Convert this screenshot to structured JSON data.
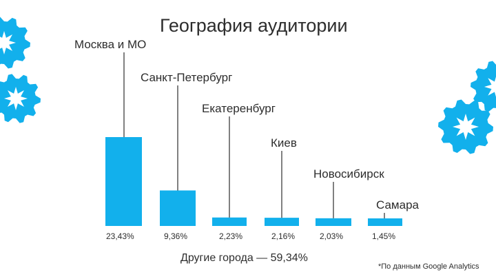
{
  "chart_data": {
    "type": "bar",
    "title": "География аудитории",
    "categories": [
      "Москва и МО",
      "Санкт-Петербург",
      "Екатеренбург",
      "Киев",
      "Новосибирск",
      "Самара"
    ],
    "values": [
      23.43,
      9.36,
      2.23,
      2.16,
      2.03,
      1.45
    ],
    "value_labels": [
      "23,43%",
      "9,36%",
      "2,23%",
      "2,16%",
      "2,03%",
      "1,45%"
    ],
    "ylim": [
      0,
      25
    ],
    "grid": false,
    "legend": "none",
    "bar_color": "#12b0ec"
  },
  "footer": {
    "others": "Другие города — 59,34%",
    "source": "*По данным Google Analytics"
  },
  "decor": {
    "icon": "gear-icon",
    "color": "#12b0ec"
  }
}
